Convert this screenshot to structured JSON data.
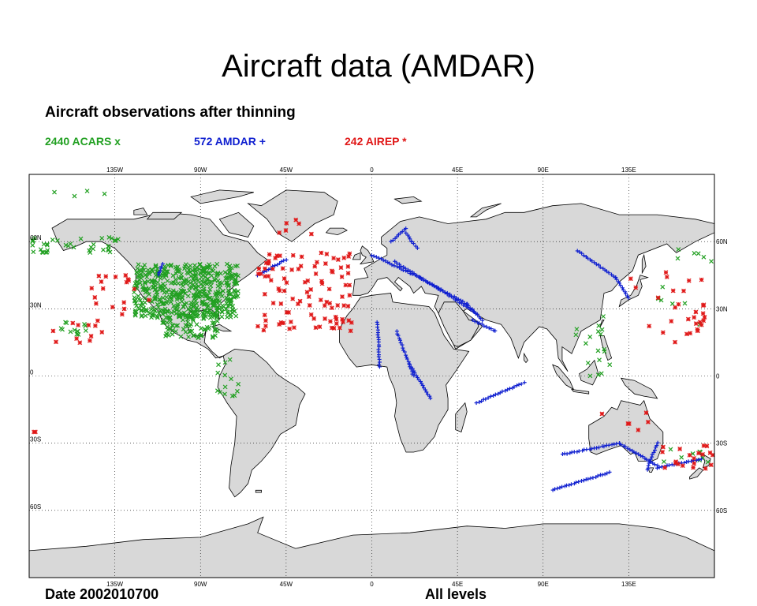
{
  "title": "Aircraft data (AMDAR)",
  "subtitle": "Aircraft observations after thinning",
  "legend": [
    {
      "id": "acars",
      "label": "2440 ACARS x",
      "color": "#22a022",
      "marker": "x"
    },
    {
      "id": "amdar",
      "label": "572 AMDAR +",
      "color": "#1020d0",
      "marker": "+"
    },
    {
      "id": "airep",
      "label": "242 AIREP *",
      "color": "#e01818",
      "marker": "*"
    }
  ],
  "map": {
    "projection": "equirectangular",
    "lon_range": [
      -180,
      180
    ],
    "lat_range": [
      -90,
      90
    ],
    "land_color": "#d8d8d8",
    "grid": "dotted",
    "lon_ticks": [
      {
        "value": -135,
        "label": "135W"
      },
      {
        "value": -90,
        "label": "90W"
      },
      {
        "value": -45,
        "label": "45W"
      },
      {
        "value": 0,
        "label": "0"
      },
      {
        "value": 45,
        "label": "45E"
      },
      {
        "value": 90,
        "label": "90E"
      },
      {
        "value": 135,
        "label": "135E"
      }
    ],
    "lat_ticks": [
      {
        "value": 60,
        "label": "60N"
      },
      {
        "value": 30,
        "label": "30N"
      },
      {
        "value": 0,
        "label": "0"
      },
      {
        "value": -30,
        "label": "30S"
      },
      {
        "value": -60,
        "label": "60S"
      }
    ]
  },
  "chart_data": {
    "type": "scatter",
    "title": "Aircraft data (AMDAR)",
    "subtitle": "Aircraft observations after thinning",
    "xlim": [
      -180,
      180
    ],
    "ylim": [
      -90,
      90
    ],
    "series": [
      {
        "name": "2440 ACARS x",
        "marker": "x",
        "color": "#22a022",
        "regions": [
          {
            "lon_range": [
              -125,
              -70
            ],
            "lat_range": [
              26,
              50
            ],
            "count": 520
          },
          {
            "lon_range": [
              -110,
              -80
            ],
            "lat_range": [
              17,
              30
            ],
            "count": 90
          },
          {
            "lon_range": [
              -180,
              -130
            ],
            "lat_range": [
              55,
              62
            ],
            "count": 40
          },
          {
            "lon_range": [
              -165,
              -150
            ],
            "lat_range": [
              18,
              24
            ],
            "count": 14
          },
          {
            "lon_range": [
              -82,
              -70
            ],
            "lat_range": [
              -10,
              8
            ],
            "count": 14
          },
          {
            "lon_range": [
              105,
              125
            ],
            "lat_range": [
              0,
              30
            ],
            "count": 18
          },
          {
            "lon_range": [
              145,
              180
            ],
            "lat_range": [
              -40,
              -32
            ],
            "count": 10
          },
          {
            "lon_range": [
              150,
              180
            ],
            "lat_range": [
              22,
              62
            ],
            "count": 12
          },
          {
            "lon_range": [
              -170,
              -140
            ],
            "lat_range": [
              80,
              84
            ],
            "count": 4
          }
        ]
      },
      {
        "name": "572 AMDAR +",
        "marker": "+",
        "color": "#1020d0",
        "tracks": [
          [
            [
              10,
              60
            ],
            [
              14,
              63
            ],
            [
              18,
              66
            ]
          ],
          [
            [
              18,
              64
            ],
            [
              21,
              60
            ],
            [
              24,
              57
            ]
          ],
          [
            [
              0,
              54
            ],
            [
              25,
              44
            ],
            [
              50,
              32
            ],
            [
              58,
              25
            ]
          ],
          [
            [
              12,
              51
            ],
            [
              35,
              39
            ],
            [
              55,
              28
            ]
          ],
          [
            [
              3,
              24
            ],
            [
              4,
              4
            ]
          ],
          [
            [
              13,
              20
            ],
            [
              22,
              0
            ]
          ],
          [
            [
              20,
              5
            ],
            [
              31,
              -10
            ]
          ],
          [
            [
              53,
              25
            ],
            [
              65,
              20
            ]
          ],
          [
            [
              108,
              56
            ],
            [
              128,
              44
            ],
            [
              135,
              35
            ]
          ],
          [
            [
              55,
              -12
            ],
            [
              80,
              -3
            ]
          ],
          [
            [
              100,
              -35
            ],
            [
              130,
              -30
            ],
            [
              150,
              -40
            ]
          ],
          [
            [
              95,
              -51
            ],
            [
              125,
              -43
            ]
          ],
          [
            [
              150,
              -30
            ],
            [
              146,
              -38
            ],
            [
              145,
              -42
            ]
          ],
          [
            [
              150,
              -41
            ],
            [
              173,
              -37
            ]
          ],
          [
            [
              -60,
              45
            ],
            [
              -45,
              52
            ]
          ],
          [
            [
              -112,
              45
            ],
            [
              -110,
              50
            ]
          ]
        ]
      },
      {
        "name": "242 AIREP *",
        "marker": "*",
        "color": "#e01818",
        "regions": [
          {
            "lon_range": [
              -60,
              -10
            ],
            "lat_range": [
              20,
              55
            ],
            "count": 100
          },
          {
            "lon_range": [
              -170,
              -140
            ],
            "lat_range": [
              14,
              25
            ],
            "count": 12
          },
          {
            "lon_range": [
              -150,
              -110
            ],
            "lat_range": [
              25,
              45
            ],
            "count": 18
          },
          {
            "lon_range": [
              -50,
              -30
            ],
            "lat_range": [
              60,
              70
            ],
            "count": 6
          },
          {
            "lon_range": [
              135,
              175
            ],
            "lat_range": [
              15,
              48
            ],
            "count": 30
          },
          {
            "lon_range": [
              150,
              180
            ],
            "lat_range": [
              -42,
              -30
            ],
            "count": 20
          },
          {
            "lon_range": [
              120,
              150
            ],
            "lat_range": [
              -25,
              -15
            ],
            "count": 6
          },
          {
            "lon_range": [
              -180,
              -175
            ],
            "lat_range": [
              -25,
              -25
            ],
            "count": 2
          }
        ]
      }
    ]
  },
  "footer": {
    "date": "Date 2002010700",
    "levels": "All levels"
  }
}
